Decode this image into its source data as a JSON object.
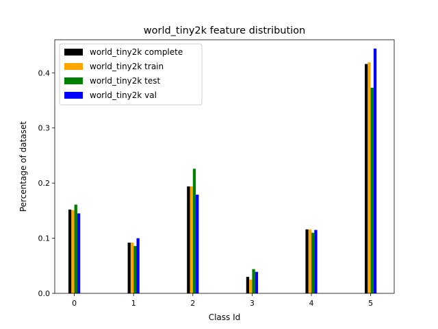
{
  "chart_data": {
    "type": "bar",
    "title": "world_tiny2k feature distribution",
    "xlabel": "Class Id",
    "ylabel": "Percentage of dataset",
    "categories": [
      "0",
      "1",
      "2",
      "3",
      "4",
      "5"
    ],
    "ylim": [
      0,
      0.46
    ],
    "yticks": [
      0.0,
      0.1,
      0.2,
      0.3,
      0.4
    ],
    "ytick_labels": [
      "0.0",
      "0.1",
      "0.2",
      "0.3",
      "0.4"
    ],
    "grid": false,
    "legend_position": "top-left",
    "series": [
      {
        "name": "world_tiny2k complete",
        "color": "#000000",
        "values": [
          0.152,
          0.092,
          0.194,
          0.03,
          0.116,
          0.416
        ]
      },
      {
        "name": "world_tiny2k train",
        "color": "#ffa500",
        "values": [
          0.151,
          0.092,
          0.194,
          0.025,
          0.116,
          0.419
        ]
      },
      {
        "name": "world_tiny2k test",
        "color": "#008000",
        "values": [
          0.161,
          0.086,
          0.226,
          0.044,
          0.11,
          0.373
        ]
      },
      {
        "name": "world_tiny2k val",
        "color": "#0000ff",
        "values": [
          0.145,
          0.1,
          0.179,
          0.039,
          0.115,
          0.444
        ]
      }
    ]
  }
}
